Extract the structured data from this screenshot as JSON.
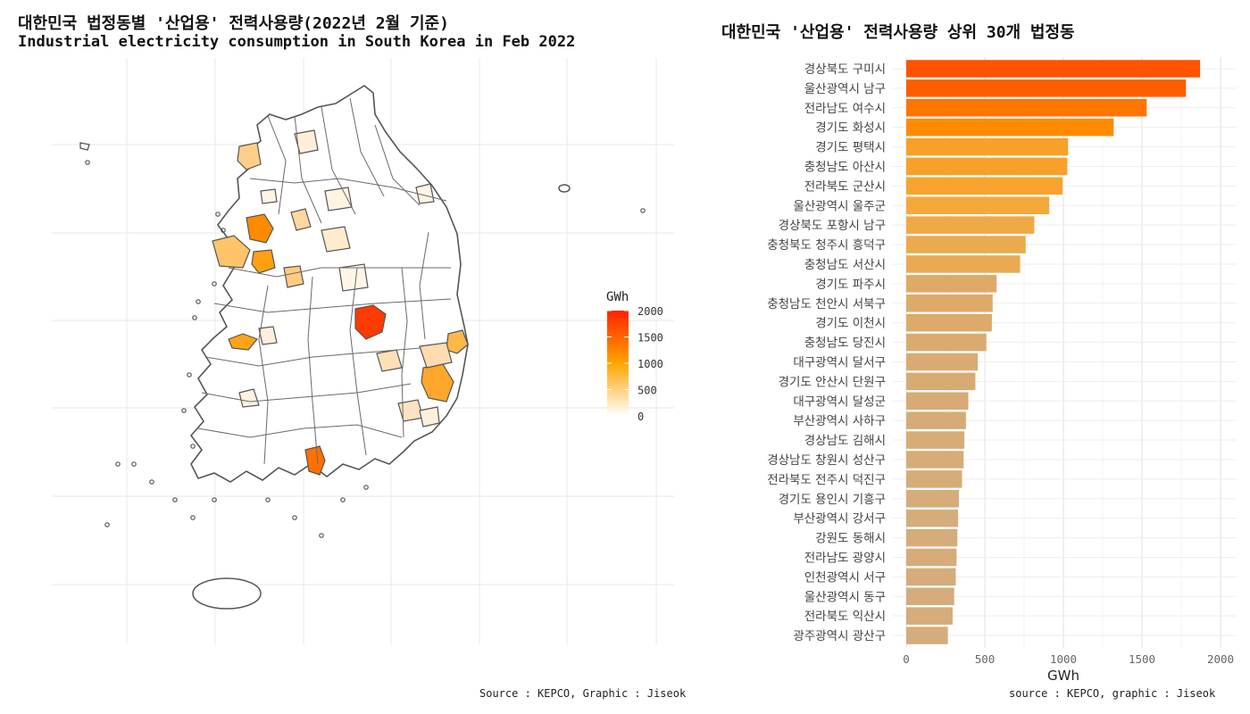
{
  "map": {
    "title": "대한민국 법정동별 '산업용' 전력사용량(2022년 2월 기준)",
    "subtitle": "Industrial electricity consumption in South Korea in Feb 2022",
    "caption": "Source : KEPCO, Graphic : Jiseok",
    "legend_title": "GWh",
    "legend_ticks": [
      "2000",
      "1500",
      "1000",
      "500",
      "0"
    ],
    "color_low": "#ffffff",
    "color_mid": "#ffa500",
    "color_high": "#ff2200"
  },
  "bars": {
    "title": "대한민국 '산업용' 전력사용량 상위 30개 법정동",
    "xlabel": "GWh",
    "caption": "source : KEPCO, graphic : Jiseok"
  },
  "chart_data": [
    {
      "type": "map",
      "title": "대한민국 법정동별 '산업용' 전력사용량(2022년 2월 기준)",
      "subtitle": "Industrial electricity consumption in South Korea in Feb 2022",
      "legend_title": "GWh",
      "color_scale": {
        "min": 0,
        "max": 2000,
        "ticks": [
          0,
          500,
          1000,
          1500,
          2000
        ]
      }
    },
    {
      "type": "bar",
      "orientation": "horizontal",
      "title": "대한민국 '산업용' 전력사용량 상위 30개 법정동",
      "xlabel": "GWh",
      "xlim": [
        0,
        2100
      ],
      "xticks": [
        0,
        500,
        1000,
        1500,
        2000
      ],
      "categories": [
        "경상북도 구미시",
        "울산광역시 남구",
        "전라남도 여수시",
        "경기도 화성시",
        "경기도 평택시",
        "충청남도 아산시",
        "전라북도 군산시",
        "울산광역시 울주군",
        "경상북도 포항시 남구",
        "충청북도 청주시 흥덕구",
        "충청남도 서산시",
        "경기도 파주시",
        "충청남도 천안시 서북구",
        "경기도 이천시",
        "충청남도 당진시",
        "대구광역시 달서구",
        "경기도 안산시 단원구",
        "대구광역시 달성군",
        "부산광역시 사하구",
        "경상남도 김해시",
        "경상남도 창원시 성산구",
        "전라북도 전주시 덕진구",
        "경기도 용인시 기흥구",
        "부산광역시 강서구",
        "강원도 동해시",
        "전라남도 광양시",
        "인천광역시 서구",
        "울산광역시 동구",
        "전라북도 익산시",
        "광주광역시 광산구"
      ],
      "values": [
        1870,
        1780,
        1530,
        1320,
        1030,
        1025,
        995,
        910,
        815,
        760,
        725,
        575,
        550,
        545,
        510,
        455,
        440,
        395,
        380,
        370,
        365,
        355,
        335,
        330,
        325,
        320,
        315,
        305,
        295,
        265
      ]
    }
  ]
}
